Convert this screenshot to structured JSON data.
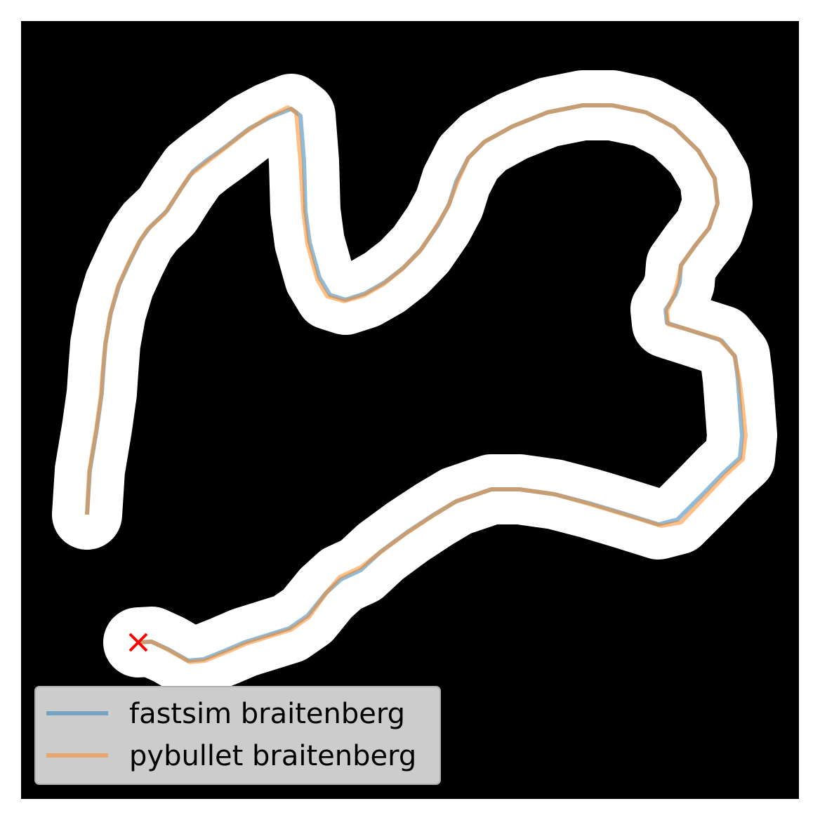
{
  "chart_data": {
    "type": "line",
    "title": "",
    "xlabel": "",
    "ylabel": "",
    "grid": false,
    "axes_visible": false,
    "legend_placement": "lower-left",
    "background": "map",
    "map_colors": {
      "obstacle": "#000000",
      "free": "#ffffff"
    },
    "start_marker": {
      "shape": "x",
      "color": "#ff0000",
      "x": 197,
      "y": 915
    },
    "series": [
      {
        "name": "fastsim braitenberg",
        "color": "#1f77b4",
        "points": [
          [
            197,
            915
          ],
          [
            216,
            914
          ],
          [
            240,
            925
          ],
          [
            268,
            941
          ],
          [
            290,
            939
          ],
          [
            320,
            927
          ],
          [
            348,
            915
          ],
          [
            380,
            905
          ],
          [
            412,
            895
          ],
          [
            438,
            877
          ],
          [
            464,
            845
          ],
          [
            486,
            825
          ],
          [
            514,
            812
          ],
          [
            542,
            786
          ],
          [
            580,
            758
          ],
          [
            618,
            733
          ],
          [
            650,
            714
          ],
          [
            700,
            697
          ],
          [
            740,
            697
          ],
          [
            790,
            704
          ],
          [
            840,
            717
          ],
          [
            890,
            732
          ],
          [
            938,
            747
          ],
          [
            965,
            740
          ],
          [
            1000,
            705
          ],
          [
            1030,
            674
          ],
          [
            1054,
            652
          ],
          [
            1057,
            620
          ],
          [
            1054,
            580
          ],
          [
            1051,
            540
          ],
          [
            1047,
            508
          ],
          [
            1028,
            485
          ],
          [
            975,
            468
          ],
          [
            950,
            460
          ],
          [
            948,
            441
          ],
          [
            962,
            420
          ],
          [
            968,
            403
          ],
          [
            970,
            378
          ],
          [
            990,
            350
          ],
          [
            1010,
            325
          ],
          [
            1022,
            290
          ],
          [
            1018,
            254
          ],
          [
            995,
            215
          ],
          [
            960,
            181
          ],
          [
            920,
            160
          ],
          [
            872,
            150
          ],
          [
            830,
            150
          ],
          [
            780,
            160
          ],
          [
            730,
            180
          ],
          [
            690,
            202
          ],
          [
            667,
            225
          ],
          [
            650,
            258
          ],
          [
            640,
            290
          ],
          [
            624,
            320
          ],
          [
            600,
            355
          ],
          [
            575,
            381
          ],
          [
            548,
            402
          ],
          [
            520,
            418
          ],
          [
            492,
            427
          ],
          [
            470,
            420
          ],
          [
            455,
            395
          ],
          [
            441,
            345
          ],
          [
            435,
            300
          ],
          [
            433,
            230
          ],
          [
            428,
            165
          ],
          [
            415,
            155
          ],
          [
            385,
            167
          ],
          [
            355,
            183
          ],
          [
            320,
            210
          ],
          [
            295,
            228
          ],
          [
            275,
            244
          ],
          [
            257,
            270
          ],
          [
            238,
            300
          ],
          [
            214,
            323
          ],
          [
            200,
            342
          ],
          [
            185,
            372
          ],
          [
            170,
            405
          ],
          [
            158,
            445
          ],
          [
            150,
            490
          ],
          [
            147,
            530
          ],
          [
            145,
            560
          ],
          [
            138,
            610
          ],
          [
            128,
            670
          ],
          [
            124,
            733
          ]
        ]
      },
      {
        "name": "pybullet braitenberg",
        "color": "#ff7f0e",
        "points": [
          [
            197,
            915
          ],
          [
            216,
            914
          ],
          [
            242,
            927
          ],
          [
            270,
            943
          ],
          [
            292,
            941
          ],
          [
            322,
            929
          ],
          [
            350,
            917
          ],
          [
            382,
            907
          ],
          [
            414,
            897
          ],
          [
            440,
            879
          ],
          [
            466,
            843
          ],
          [
            484,
            822
          ],
          [
            514,
            808
          ],
          [
            540,
            788
          ],
          [
            578,
            760
          ],
          [
            616,
            735
          ],
          [
            650,
            714
          ],
          [
            700,
            697
          ],
          [
            740,
            697
          ],
          [
            790,
            704
          ],
          [
            840,
            718
          ],
          [
            890,
            733
          ],
          [
            942,
            749
          ],
          [
            970,
            744
          ],
          [
            1004,
            708
          ],
          [
            1034,
            676
          ],
          [
            1058,
            654
          ],
          [
            1062,
            620
          ],
          [
            1058,
            580
          ],
          [
            1053,
            540
          ],
          [
            1046,
            506
          ],
          [
            1024,
            483
          ],
          [
            975,
            468
          ],
          [
            952,
            462
          ],
          [
            950,
            443
          ],
          [
            960,
            420
          ],
          [
            965,
            403
          ],
          [
            970,
            378
          ],
          [
            990,
            350
          ],
          [
            1010,
            325
          ],
          [
            1022,
            290
          ],
          [
            1018,
            254
          ],
          [
            995,
            215
          ],
          [
            960,
            181
          ],
          [
            920,
            160
          ],
          [
            872,
            150
          ],
          [
            830,
            150
          ],
          [
            780,
            160
          ],
          [
            730,
            180
          ],
          [
            690,
            202
          ],
          [
            667,
            225
          ],
          [
            652,
            258
          ],
          [
            638,
            295
          ],
          [
            620,
            325
          ],
          [
            598,
            358
          ],
          [
            572,
            384
          ],
          [
            546,
            405
          ],
          [
            518,
            421
          ],
          [
            490,
            429
          ],
          [
            466,
            422
          ],
          [
            452,
            398
          ],
          [
            438,
            348
          ],
          [
            432,
            300
          ],
          [
            428,
            230
          ],
          [
            422,
            160
          ],
          [
            410,
            153
          ],
          [
            380,
            168
          ],
          [
            350,
            188
          ],
          [
            318,
            213
          ],
          [
            292,
            233
          ],
          [
            270,
            250
          ],
          [
            254,
            275
          ],
          [
            234,
            305
          ],
          [
            210,
            327
          ],
          [
            198,
            345
          ],
          [
            183,
            375
          ],
          [
            168,
            408
          ],
          [
            157,
            448
          ],
          [
            150,
            492
          ],
          [
            146,
            532
          ],
          [
            144,
            562
          ],
          [
            137,
            612
          ],
          [
            127,
            672
          ],
          [
            124,
            733
          ]
        ]
      }
    ]
  }
}
